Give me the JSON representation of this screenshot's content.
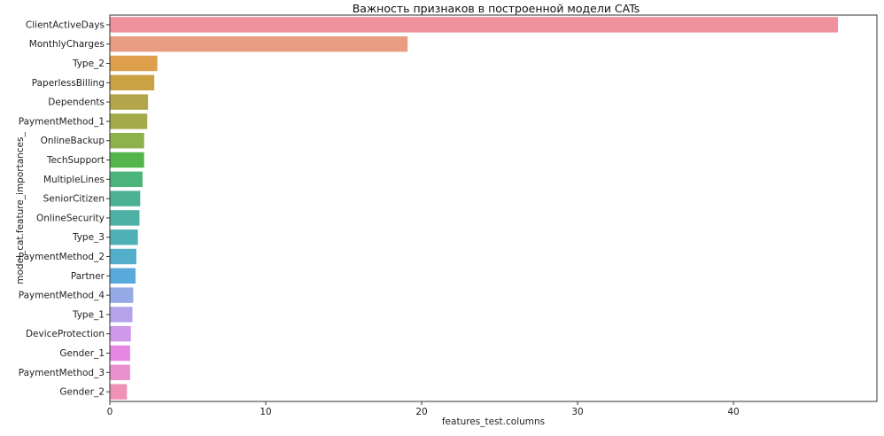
{
  "chart_data": {
    "type": "bar",
    "orientation": "horizontal",
    "title": "Важность признаков в построенной модели CATs",
    "xlabel": "features_test.columns",
    "ylabel": "model_cat.feature_importances_",
    "xlim": [
      0,
      49.2
    ],
    "xticks": [
      0,
      10,
      20,
      30,
      40
    ],
    "grid": false,
    "categories": [
      "ClientActiveDays",
      "MonthlyCharges",
      "Type_2",
      "PaperlessBilling",
      "Dependents",
      "PaymentMethod_1",
      "OnlineBackup",
      "TechSupport",
      "MultipleLines",
      "SeniorCitizen",
      "OnlineSecurity",
      "Type_3",
      "PaymentMethod_2",
      "Partner",
      "PaymentMethod_4",
      "Type_1",
      "DeviceProtection",
      "Gender_1",
      "PaymentMethod_3",
      "Gender_2"
    ],
    "values": [
      46.7,
      19.1,
      3.05,
      2.85,
      2.45,
      2.4,
      2.2,
      2.2,
      2.1,
      1.95,
      1.9,
      1.8,
      1.7,
      1.65,
      1.5,
      1.45,
      1.35,
      1.3,
      1.3,
      1.1
    ],
    "colors": [
      "#f0929c",
      "#e89c82",
      "#dd9f4c",
      "#caa244",
      "#b3a64a",
      "#a4aa4a",
      "#8db24b",
      "#54b54d",
      "#4bb47a",
      "#4db293",
      "#4eb1a5",
      "#4fb0b5",
      "#52aec9",
      "#5aa9dd",
      "#95a9e6",
      "#b5a3ea",
      "#cf98e9",
      "#e587e3",
      "#e891cc",
      "#ee93b6"
    ]
  }
}
